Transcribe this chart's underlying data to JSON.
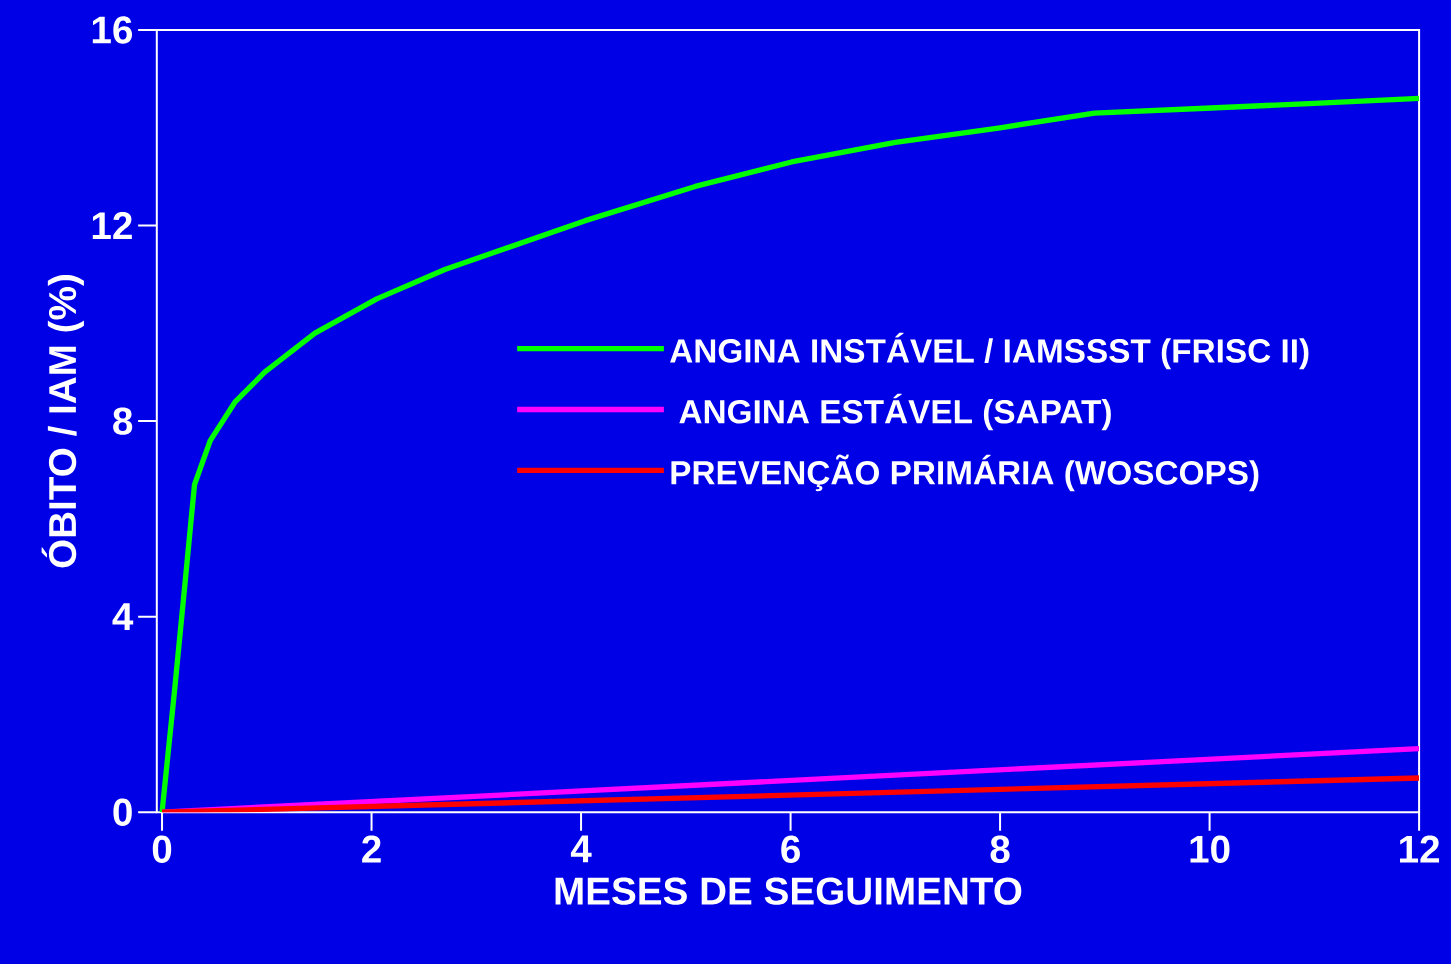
{
  "chart_data": {
    "type": "line",
    "xlabel": "MESES DE SEGUIMENTO",
    "ylabel": "ÓBITO / IAM (%)",
    "xlim": [
      -0.05,
      12
    ],
    "ylim": [
      0,
      16
    ],
    "xticks": [
      0,
      2,
      4,
      6,
      8,
      10,
      12
    ],
    "yticks": [
      0,
      4,
      8,
      12,
      16
    ],
    "grid": false,
    "legend": "right",
    "marker": "none",
    "line_style": "solid",
    "series": [
      {
        "name": "ANGINA INSTÁVEL / IAMSSST (FRISC II)",
        "color": "#00ff00",
        "x": [
          0,
          0.12,
          0.22,
          0.31,
          0.46,
          0.7,
          0.98,
          1.46,
          2.05,
          2.7,
          4.04,
          5.09,
          6.01,
          7.0,
          8.0,
          8.9,
          9.96,
          11.0,
          12
        ],
        "values": [
          0,
          2.5,
          4.7,
          6.7,
          7.6,
          8.4,
          9.0,
          9.8,
          10.5,
          11.1,
          12.1,
          12.8,
          13.3,
          13.7,
          14.0,
          14.3,
          14.4,
          14.5,
          14.6
        ]
      },
      {
        "name": " ANGINA ESTÁVEL (SAPAT)",
        "color": "#ff00ff",
        "x": [
          0,
          6,
          12
        ],
        "values": [
          0,
          0.65,
          1.3
        ]
      },
      {
        "name": "PREVENÇÃO PRIMÁRIA (WOSCOPS)",
        "color": "#ff0000",
        "x": [
          0,
          6,
          12
        ],
        "values": [
          0,
          0.35,
          0.7
        ]
      }
    ]
  }
}
